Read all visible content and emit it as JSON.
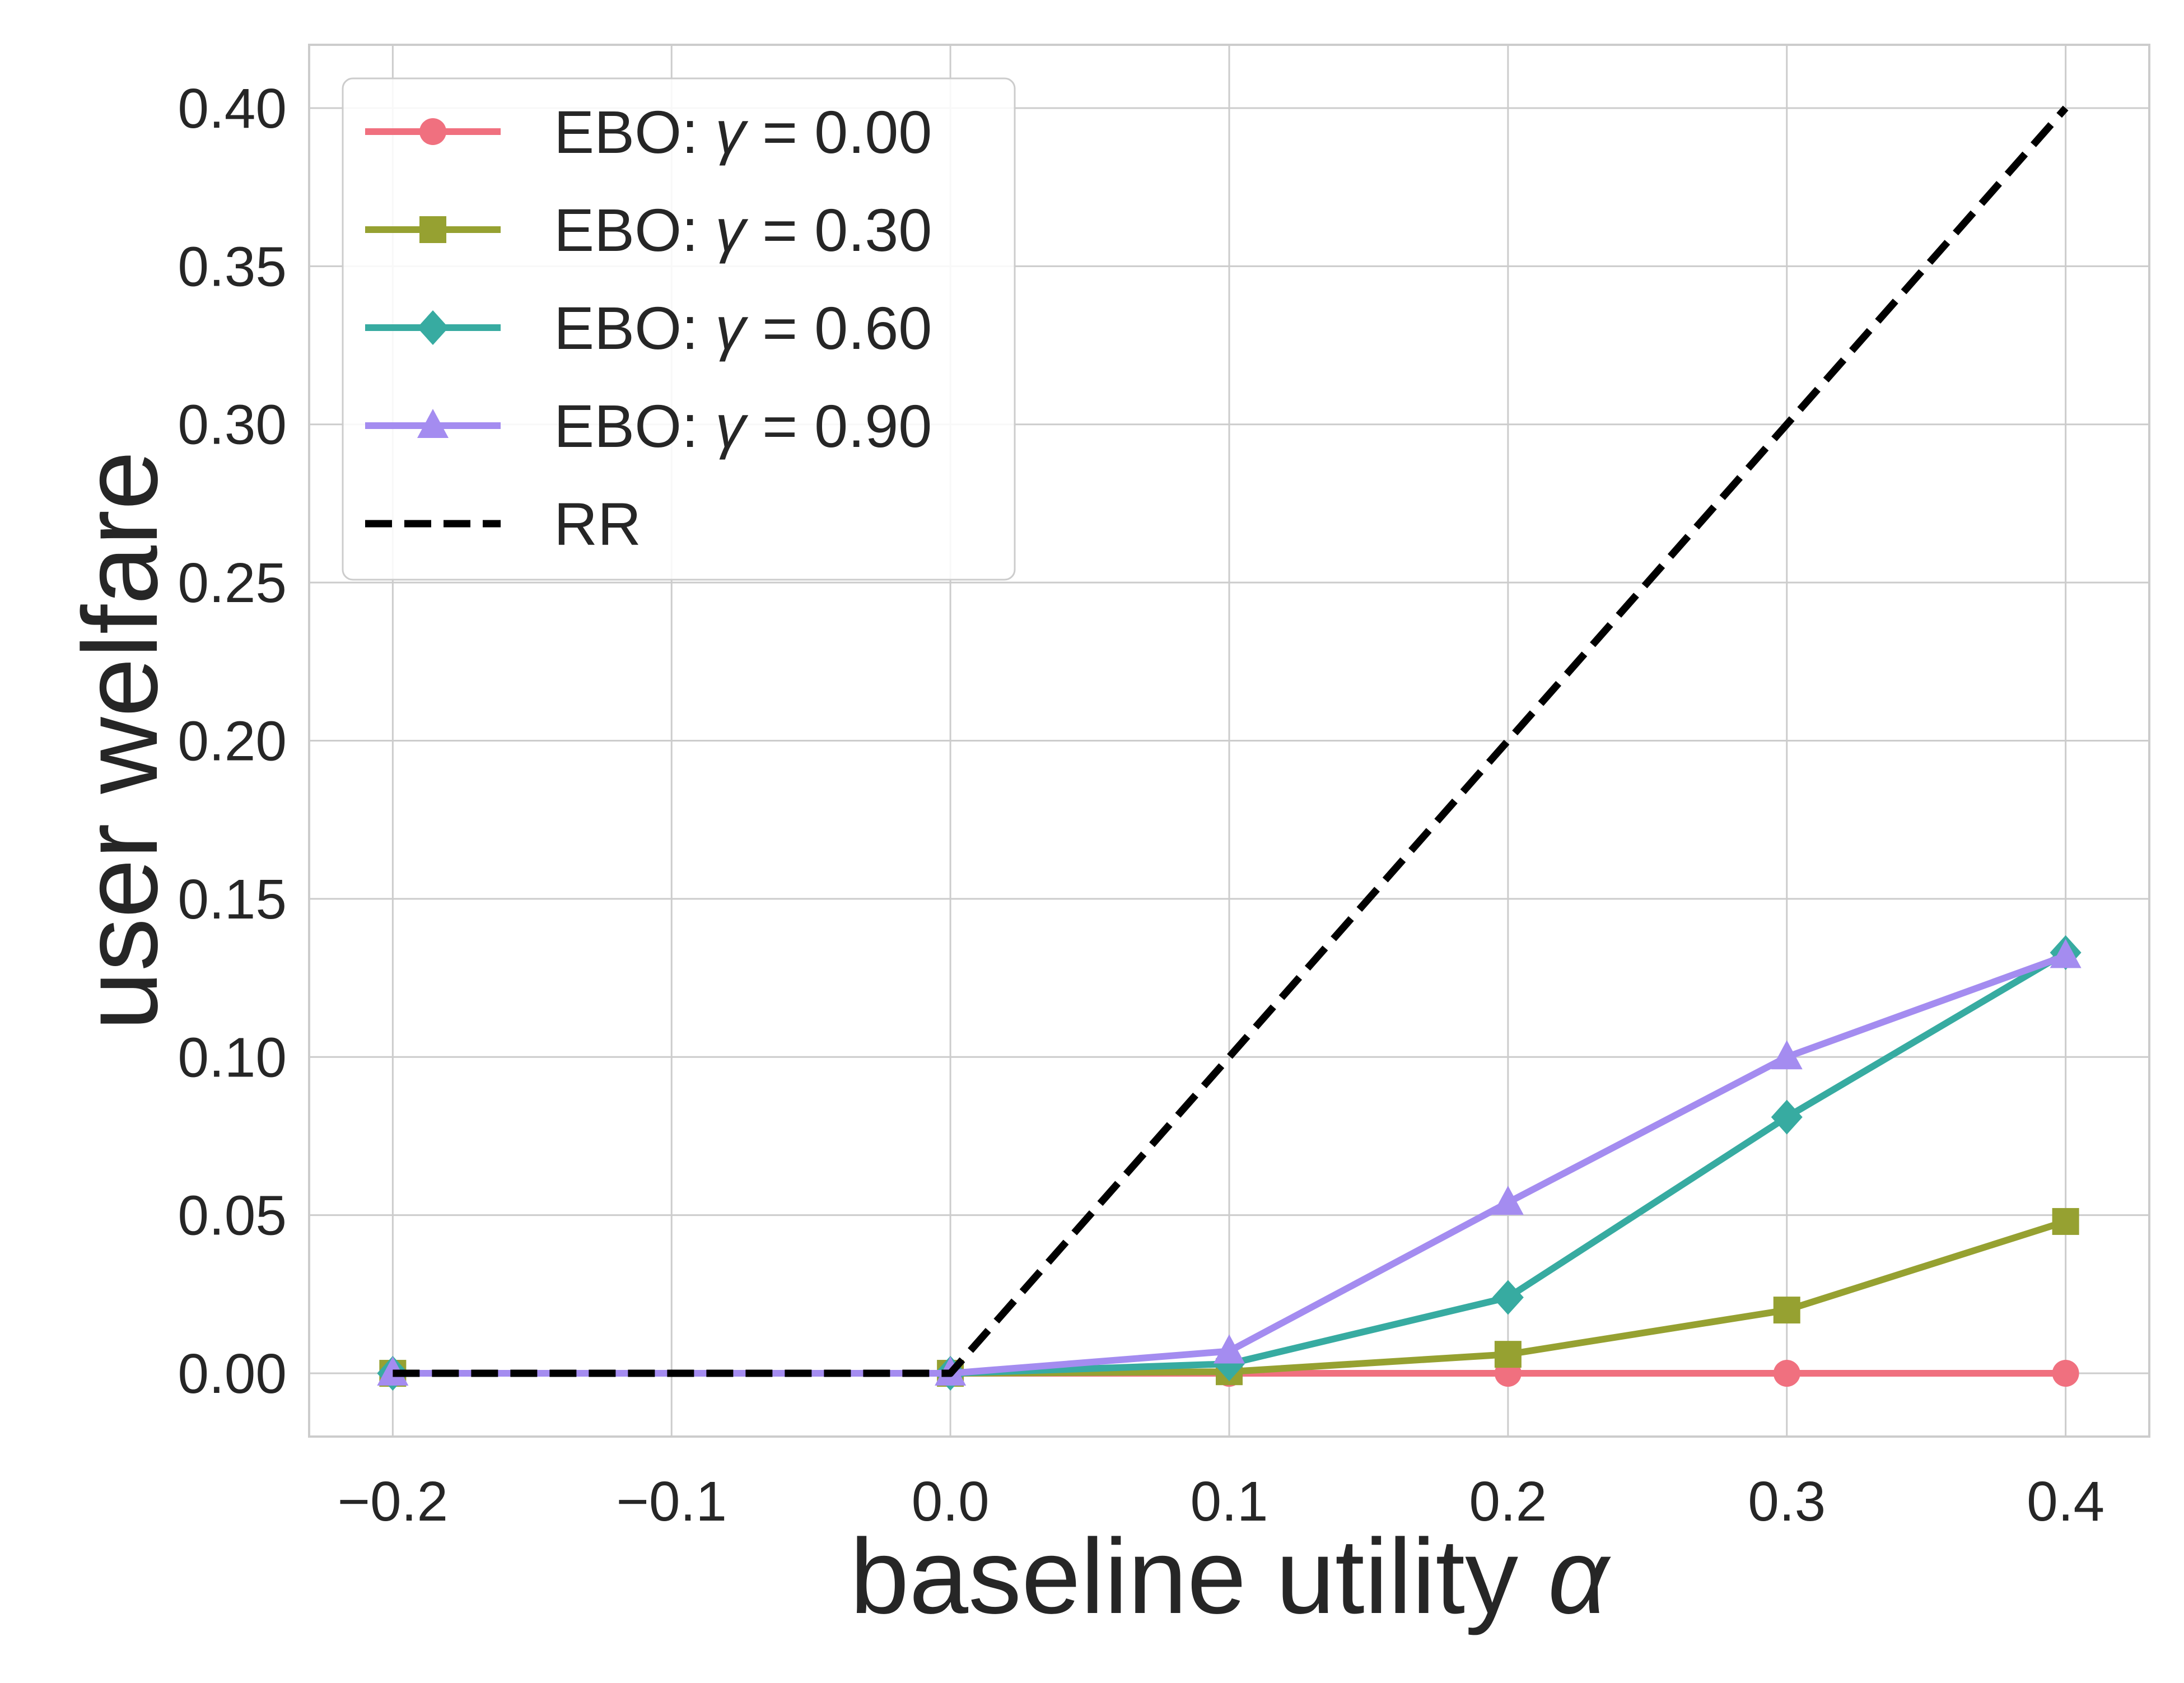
{
  "chart_data": {
    "type": "line",
    "title": "",
    "xlabel": "baseline utility α",
    "ylabel": "user welfare",
    "xlim": [
      -0.23,
      0.43
    ],
    "ylim": [
      -0.02,
      0.42
    ],
    "grid": true,
    "x_ticks": [
      -0.2,
      -0.1,
      0.0,
      0.1,
      0.2,
      0.3,
      0.4
    ],
    "x_tick_labels": [
      "−0.2",
      "−0.1",
      "0.0",
      "0.1",
      "0.2",
      "0.3",
      "0.4"
    ],
    "y_ticks": [
      0.0,
      0.05,
      0.1,
      0.15,
      0.2,
      0.25,
      0.3,
      0.35,
      0.4
    ],
    "y_tick_labels": [
      "0.00",
      "0.05",
      "0.10",
      "0.15",
      "0.20",
      "0.25",
      "0.30",
      "0.35",
      "0.40"
    ],
    "legend_position": "top-left",
    "x": [
      -0.2,
      0.0,
      0.1,
      0.2,
      0.3,
      0.4
    ],
    "series": [
      {
        "name": "EBO: γ = 0.00",
        "legend_prefix": "EBO: ",
        "legend_gamma": "γ",
        "legend_value": " = 0.00",
        "color": "#f0707f",
        "marker": "circle",
        "style": "solid",
        "x": [
          -0.2,
          0.0,
          0.1,
          0.2,
          0.3,
          0.4
        ],
        "values": [
          0.0,
          0.0,
          0.0,
          0.0,
          0.0,
          0.0
        ]
      },
      {
        "name": "EBO: γ = 0.30",
        "legend_prefix": "EBO: ",
        "legend_gamma": "γ",
        "legend_value": " = 0.30",
        "color": "#96a131",
        "marker": "square",
        "style": "solid",
        "x": [
          -0.2,
          0.0,
          0.1,
          0.2,
          0.3,
          0.4
        ],
        "values": [
          0.0,
          0.0,
          0.0005,
          0.006,
          0.02,
          0.048
        ]
      },
      {
        "name": "EBO: γ = 0.60",
        "legend_prefix": "EBO: ",
        "legend_gamma": "γ",
        "legend_value": " = 0.60",
        "color": "#37aba1",
        "marker": "diamond",
        "style": "solid",
        "x": [
          -0.2,
          0.0,
          0.1,
          0.2,
          0.3,
          0.4
        ],
        "values": [
          0.0,
          0.0,
          0.003,
          0.024,
          0.081,
          0.133
        ]
      },
      {
        "name": "EBO: γ = 0.90",
        "legend_prefix": "EBO: ",
        "legend_gamma": "γ",
        "legend_value": " = 0.90",
        "color": "#a48cf0",
        "marker": "triangle",
        "style": "solid",
        "x": [
          -0.2,
          0.0,
          0.1,
          0.2,
          0.3,
          0.4
        ],
        "values": [
          0.0,
          0.0,
          0.007,
          0.054,
          0.1,
          0.132
        ]
      },
      {
        "name": "RR",
        "legend_prefix": "RR",
        "legend_gamma": "",
        "legend_value": "",
        "color": "#000000",
        "marker": "none",
        "style": "dashed",
        "x": [
          -0.2,
          0.0,
          0.4
        ],
        "values": [
          0.0,
          0.0,
          0.4
        ]
      }
    ]
  }
}
